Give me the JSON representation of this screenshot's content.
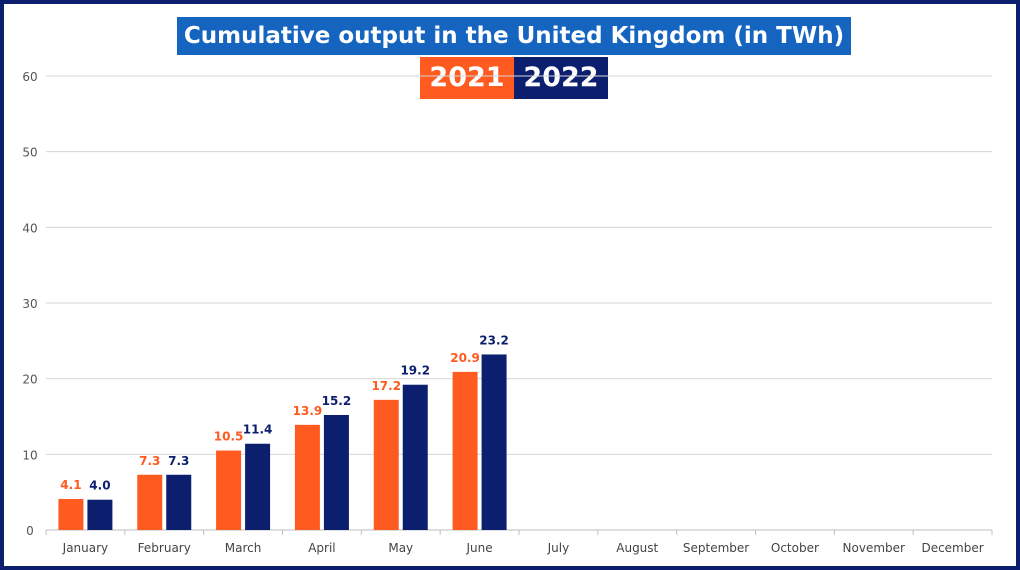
{
  "header": {
    "title": "Cumulative output in the United Kingdom (in TWh)"
  },
  "legend": [
    {
      "label": "2021",
      "color": "#ff5a1f"
    },
    {
      "label": "2022",
      "color": "#0c1f6e"
    }
  ],
  "chart_data": {
    "type": "bar",
    "title": "Cumulative output in the United Kingdom (in TWh)",
    "categories": [
      "January",
      "February",
      "March",
      "April",
      "May",
      "June",
      "July",
      "August",
      "September",
      "October",
      "November",
      "December"
    ],
    "series": [
      {
        "name": "2021",
        "color": "#ff5a1f",
        "values": [
          4.1,
          7.3,
          10.5,
          13.9,
          17.2,
          20.9,
          null,
          null,
          null,
          null,
          null,
          null
        ],
        "labels": [
          "4.1",
          "7.3",
          "10.5",
          "13.9",
          "17.2",
          "20.9"
        ]
      },
      {
        "name": "2022",
        "color": "#0c1f6e",
        "values": [
          4.0,
          7.3,
          11.4,
          15.2,
          19.2,
          23.2,
          null,
          null,
          null,
          null,
          null,
          null
        ],
        "labels": [
          "4.0",
          "7.3",
          "11.4",
          "15.2",
          "19.2",
          "23.2"
        ]
      }
    ],
    "ylim": [
      0,
      60
    ],
    "yticks": [
      0,
      10,
      20,
      30,
      40,
      50,
      60
    ],
    "grid": true,
    "legend_position": "top-center",
    "xlabel": "",
    "ylabel": ""
  }
}
